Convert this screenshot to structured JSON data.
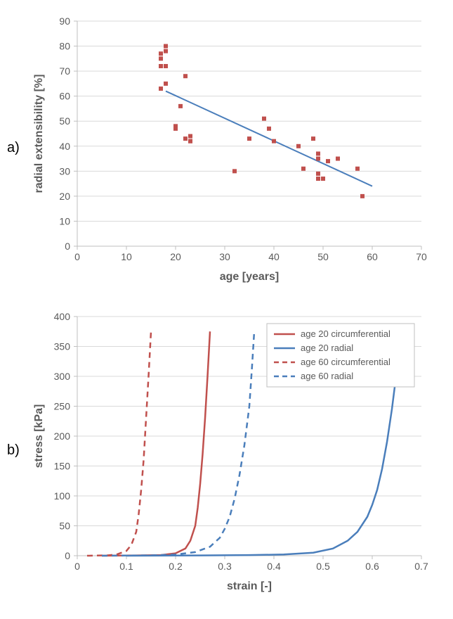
{
  "panel_a": {
    "label": "a)",
    "type": "scatter+line",
    "xlabel": "age [years]",
    "ylabel": "radial extensibility [%]",
    "axis_title_fontsize": 16,
    "tick_fontsize": 14,
    "xlim": [
      0,
      70
    ],
    "ylim": [
      0,
      90
    ],
    "xtick_step": 10,
    "ytick_step": 10,
    "grid_color": "#d9d9d9",
    "axis_color": "#bfbfbf",
    "background_color": "#ffffff",
    "scatter": {
      "color": "#c0504d",
      "marker": "square",
      "size": 6,
      "points": [
        [
          17,
          75
        ],
        [
          17,
          77
        ],
        [
          17,
          72
        ],
        [
          17,
          63
        ],
        [
          18,
          72
        ],
        [
          18,
          80
        ],
        [
          18,
          78
        ],
        [
          18,
          65
        ],
        [
          20,
          48
        ],
        [
          20,
          47
        ],
        [
          21,
          56
        ],
        [
          22,
          68
        ],
        [
          22,
          43
        ],
        [
          23,
          42
        ],
        [
          23,
          44
        ],
        [
          23,
          42
        ],
        [
          32,
          30
        ],
        [
          35,
          43
        ],
        [
          38,
          51
        ],
        [
          39,
          47
        ],
        [
          40,
          42
        ],
        [
          45,
          40
        ],
        [
          46,
          31
        ],
        [
          48,
          43
        ],
        [
          49,
          35
        ],
        [
          49,
          37
        ],
        [
          49,
          27
        ],
        [
          49,
          29
        ],
        [
          50,
          27
        ],
        [
          51,
          34
        ],
        [
          53,
          35
        ],
        [
          57,
          31
        ],
        [
          58,
          20
        ]
      ]
    },
    "trendline": {
      "color": "#4a7ebb",
      "width": 2,
      "start": [
        18,
        62
      ],
      "end": [
        60,
        24
      ]
    }
  },
  "panel_b": {
    "label": "b)",
    "type": "line",
    "xlabel": "strain [-]",
    "ylabel": "stress [kPa]",
    "axis_title_fontsize": 16,
    "tick_fontsize": 14,
    "xlim": [
      0,
      0.7
    ],
    "ylim": [
      0,
      400
    ],
    "xtick_step": 0.1,
    "ytick_step": 50,
    "grid_color": "#d9d9d9",
    "axis_color": "#bfbfbf",
    "background_color": "#ffffff",
    "legend": {
      "position": "top-right",
      "border_color": "#bfbfbf",
      "items": [
        {
          "label": "age 20 circumferential",
          "color": "#c0504d",
          "dash": "solid"
        },
        {
          "label": "age 20 radial",
          "color": "#4a7ebb",
          "dash": "solid"
        },
        {
          "label": "age 60 circumferential",
          "color": "#c0504d",
          "dash": "dashed"
        },
        {
          "label": "age 60 radial",
          "color": "#4a7ebb",
          "dash": "dashed"
        }
      ]
    },
    "curves": [
      {
        "name": "age60_circ",
        "color": "#c0504d",
        "width": 2.5,
        "dash": "dashed",
        "points": [
          [
            0.02,
            0
          ],
          [
            0.06,
            0.5
          ],
          [
            0.08,
            2
          ],
          [
            0.1,
            8
          ],
          [
            0.11,
            18
          ],
          [
            0.12,
            40
          ],
          [
            0.125,
            70
          ],
          [
            0.13,
            110
          ],
          [
            0.135,
            160
          ],
          [
            0.14,
            230
          ],
          [
            0.145,
            300
          ],
          [
            0.15,
            375
          ]
        ]
      },
      {
        "name": "age20_circ",
        "color": "#c0504d",
        "width": 2.5,
        "dash": "solid",
        "points": [
          [
            0.05,
            0
          ],
          [
            0.12,
            0.5
          ],
          [
            0.17,
            1
          ],
          [
            0.2,
            4
          ],
          [
            0.22,
            12
          ],
          [
            0.23,
            25
          ],
          [
            0.24,
            50
          ],
          [
            0.245,
            80
          ],
          [
            0.25,
            120
          ],
          [
            0.255,
            170
          ],
          [
            0.26,
            230
          ],
          [
            0.265,
            300
          ],
          [
            0.27,
            375
          ]
        ]
      },
      {
        "name": "age60_rad",
        "color": "#4a7ebb",
        "width": 2.5,
        "dash": "dashed",
        "points": [
          [
            0.05,
            0
          ],
          [
            0.15,
            0.5
          ],
          [
            0.2,
            2
          ],
          [
            0.24,
            6
          ],
          [
            0.27,
            15
          ],
          [
            0.29,
            30
          ],
          [
            0.3,
            45
          ],
          [
            0.31,
            65
          ],
          [
            0.32,
            95
          ],
          [
            0.33,
            135
          ],
          [
            0.34,
            185
          ],
          [
            0.35,
            250
          ],
          [
            0.355,
            310
          ],
          [
            0.36,
            375
          ]
        ]
      },
      {
        "name": "age20_rad",
        "color": "#4a7ebb",
        "width": 2.5,
        "dash": "solid",
        "points": [
          [
            0.1,
            0
          ],
          [
            0.25,
            0.5
          ],
          [
            0.35,
            1
          ],
          [
            0.42,
            2
          ],
          [
            0.48,
            5
          ],
          [
            0.52,
            12
          ],
          [
            0.55,
            25
          ],
          [
            0.57,
            40
          ],
          [
            0.59,
            65
          ],
          [
            0.6,
            85
          ],
          [
            0.61,
            110
          ],
          [
            0.62,
            145
          ],
          [
            0.63,
            190
          ],
          [
            0.64,
            245
          ],
          [
            0.65,
            310
          ],
          [
            0.655,
            345
          ],
          [
            0.66,
            375
          ]
        ]
      }
    ]
  }
}
